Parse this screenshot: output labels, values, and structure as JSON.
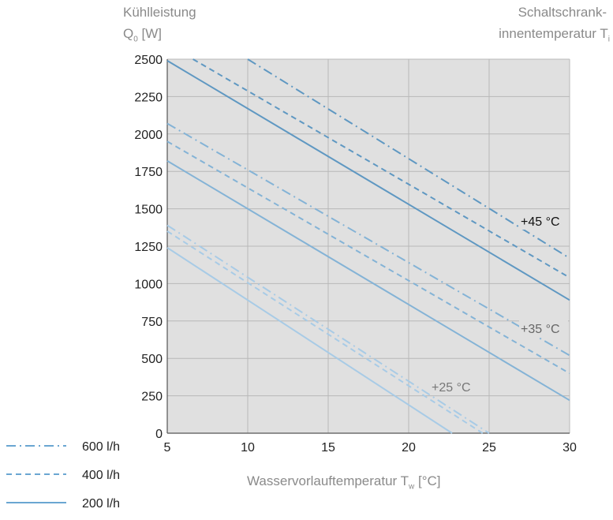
{
  "ylabel_line1": "Kühlleistung",
  "ylabel_line2": "Q",
  "ylabel_sub": "0",
  "ylabel_unit": "[W]",
  "right_label_line1": "Schaltschrank-",
  "right_label_line2": "innentemperatur T",
  "right_label_sub": "i",
  "xlabel": "Wasservorlauftemperatur T",
  "xlabel_sub": "w",
  "xlabel_unit": "[°C]",
  "colors": {
    "grid_bg": "#e0e0e0",
    "grid_line": "#b8b8b8",
    "t45": "#5f98c2",
    "t35": "#84b3d6",
    "t25": "#a8cbe6",
    "legend": "#6aa6d2"
  },
  "chart_data": {
    "type": "line",
    "xlim": [
      5,
      30
    ],
    "ylim": [
      0,
      2500
    ],
    "xticks": [
      5,
      10,
      15,
      20,
      25,
      30
    ],
    "yticks": [
      0,
      250,
      500,
      750,
      1000,
      1250,
      1500,
      1750,
      2000,
      2250,
      2500
    ],
    "grid": true,
    "legend": [
      {
        "name": "600 l/h",
        "style": "dashdot"
      },
      {
        "name": "400 l/h",
        "style": "dashed"
      },
      {
        "name": "200 l/h",
        "style": "solid"
      }
    ],
    "groups": [
      {
        "temperature_label": "+45 °C",
        "color_key": "t45",
        "series": [
          {
            "name": "600 l/h",
            "style": "dashdot",
            "x": [
              10,
              30
            ],
            "y": [
              2500,
              1170
            ]
          },
          {
            "name": "400 l/h",
            "style": "dashed",
            "x": [
              6.6,
              30
            ],
            "y": [
              2500,
              1040
            ]
          },
          {
            "name": "200 l/h",
            "style": "solid",
            "x": [
              5,
              30
            ],
            "y": [
              2490,
              890
            ]
          }
        ]
      },
      {
        "temperature_label": "+35 °C",
        "color_key": "t35",
        "series": [
          {
            "name": "600 l/h",
            "style": "dashdot",
            "x": [
              5,
              30
            ],
            "y": [
              2070,
              520
            ]
          },
          {
            "name": "400 l/h",
            "style": "dashed",
            "x": [
              5,
              30
            ],
            "y": [
              1950,
              400
            ]
          },
          {
            "name": "200 l/h",
            "style": "solid",
            "x": [
              5,
              30
            ],
            "y": [
              1820,
              220
            ]
          }
        ]
      },
      {
        "temperature_label": "+25 °C",
        "color_key": "t25",
        "series": [
          {
            "name": "600 l/h",
            "style": "dashdot",
            "x": [
              5,
              25
            ],
            "y": [
              1390,
              0
            ]
          },
          {
            "name": "400 l/h",
            "style": "dashed",
            "x": [
              5,
              24.6
            ],
            "y": [
              1350,
              0
            ]
          },
          {
            "name": "200 l/h",
            "style": "solid",
            "x": [
              5,
              22.7
            ],
            "y": [
              1240,
              0
            ]
          }
        ]
      }
    ]
  }
}
